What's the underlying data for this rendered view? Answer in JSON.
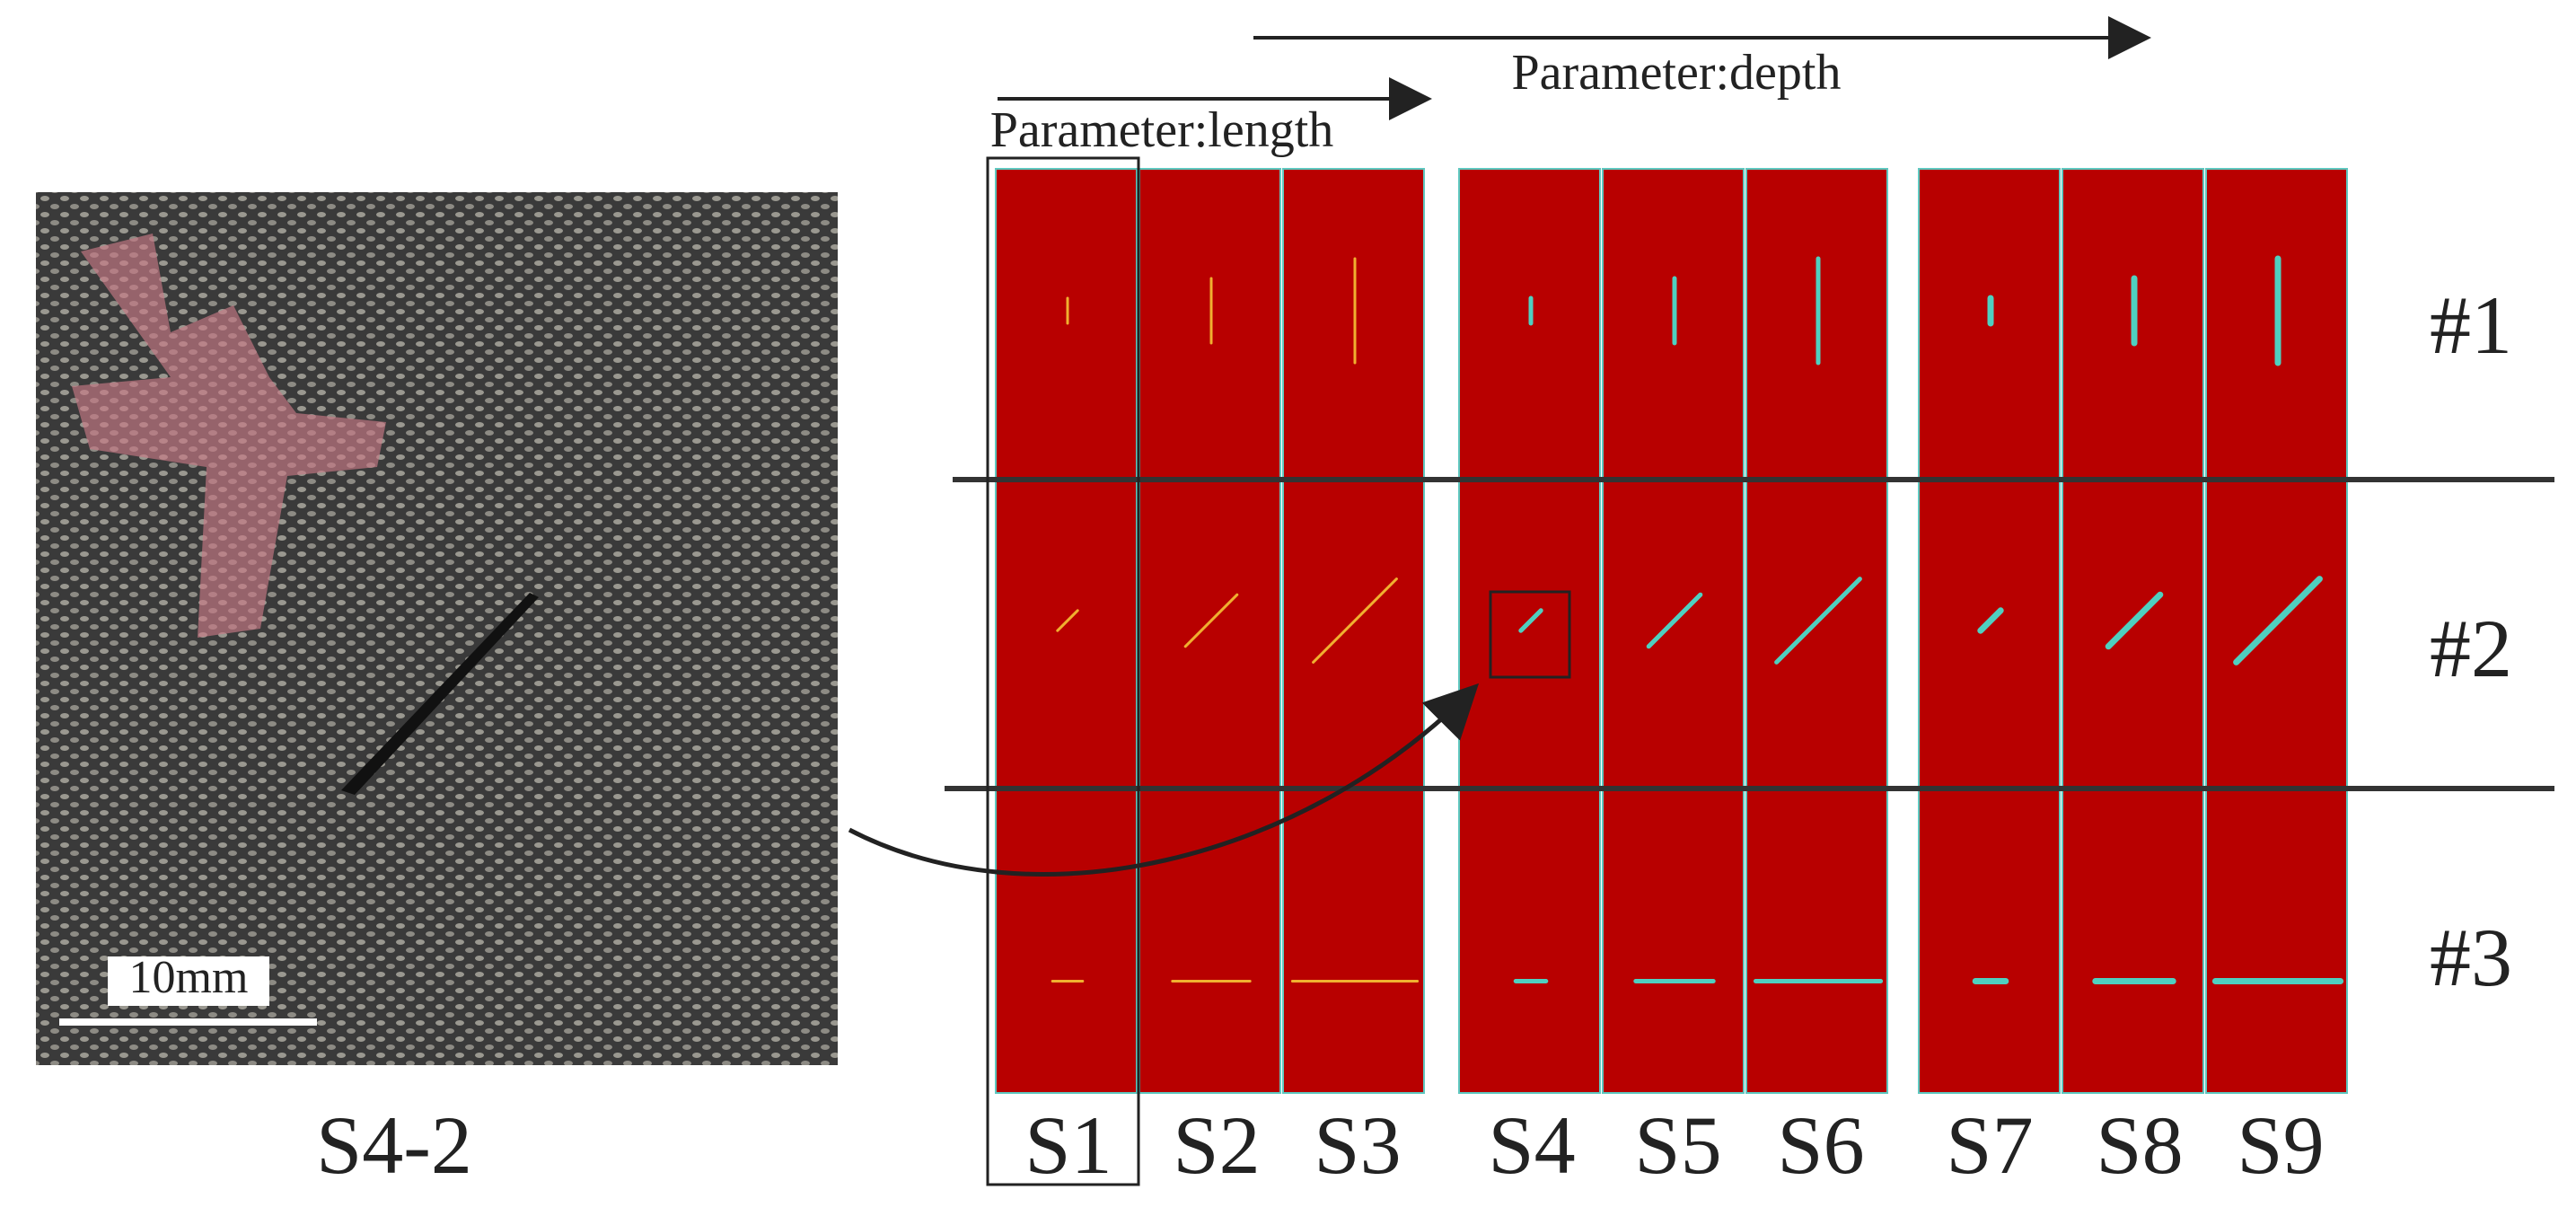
{
  "figure": {
    "depth_label": "Parameter:depth",
    "length_label": "Parameter:length",
    "scale_label": "10mm",
    "photo_label": "S4-2",
    "rows": [
      "#1",
      "#2",
      "#3"
    ],
    "samples": [
      "S1",
      "S2",
      "S3",
      "S4",
      "S5",
      "S6",
      "S7",
      "S8",
      "S9"
    ]
  }
}
